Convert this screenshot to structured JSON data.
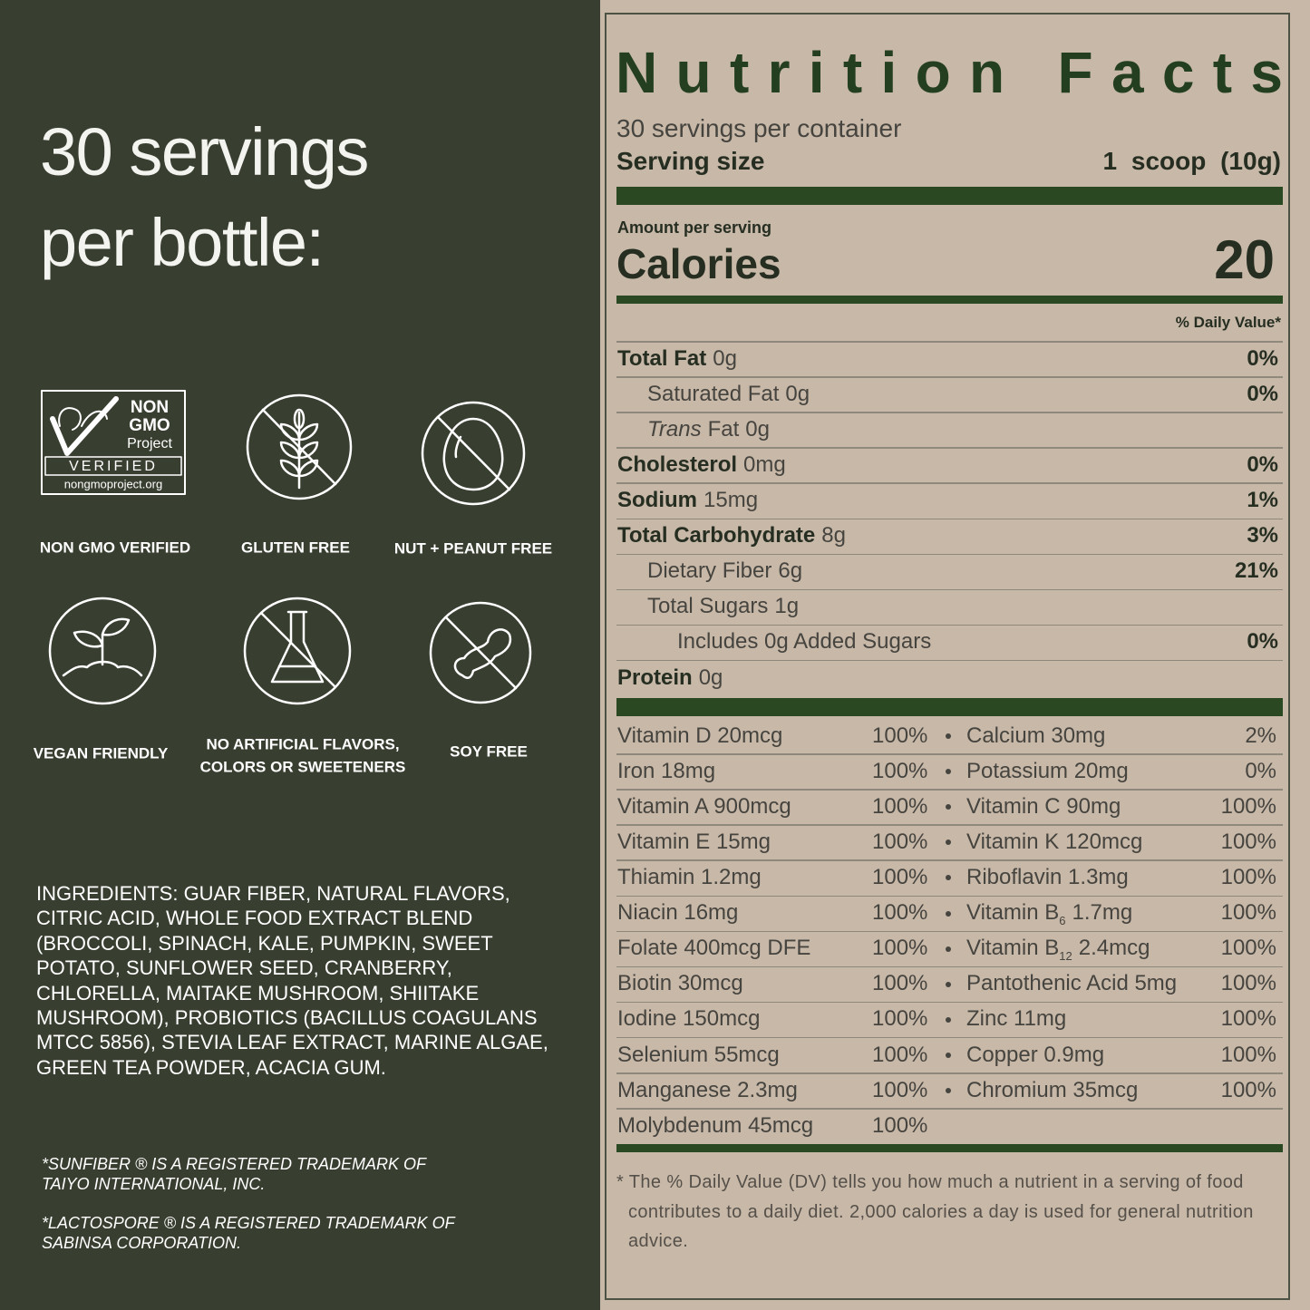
{
  "left": {
    "heading": [
      "30 servings",
      "per bottle:"
    ],
    "badges": [
      {
        "label": "NON GMO VERIFIED",
        "logo": {
          "lines": [
            "NON",
            "GMO",
            "Project"
          ],
          "verified": "VERIFIED",
          "url": "nongmoproject.org"
        }
      },
      {
        "label": "GLUTEN FREE"
      },
      {
        "label": "NUT + PEANUT FREE"
      },
      {
        "label": "VEGAN FRIENDLY"
      },
      {
        "label": [
          "NO ARTIFICIAL FLAVORS,",
          "COLORS OR SWEETENERS"
        ]
      },
      {
        "label": "SOY FREE"
      }
    ],
    "ingredients": "INGREDIENTS: GUAR FIBER, NATURAL FLAVORS, CITRIC ACID, WHOLE FOOD EXTRACT BLEND (BROCCOLI, SPINACH, KALE, PUMPKIN, SWEET POTATO, SUNFLOWER SEED, CRANBERRY, CHLORELLA, MAITAKE MUSHROOM, SHIITAKE MUSHROOM), PROBIOTICS (BACILLUS COAGULANS MTCC 5856), STEVIA LEAF EXTRACT, MARINE ALGAE, GREEN TEA POWDER, ACACIA GUM.",
    "trademarks": [
      "*SUNFIBER ® IS A REGISTERED TRADEMARK OF TAIYO INTERNATIONAL, INC.",
      "*LACTOSPORE ® IS A REGISTERED TRADEMARK OF SABINSA CORPORATION."
    ]
  },
  "nutrition_facts": {
    "title": "Nutrition Facts",
    "servings": "30 servings per container",
    "serving_size_label": "Serving size",
    "serving_size": "1 scoop (10g)",
    "amount_per_serving": "Amount per serving",
    "calories_label": "Calories",
    "calories": "20",
    "daily_value_header": "% Daily Value*",
    "nutrients": [
      {
        "name": "Total Fat",
        "amount": "0g",
        "dv": "0%",
        "sub": [
          {
            "name": "Saturated Fat",
            "amount": "0g",
            "dv": "0%"
          },
          {
            "name_italic": "Trans",
            "name": "Fat",
            "amount": "0g"
          }
        ]
      },
      {
        "name": "Cholesterol",
        "amount": "0mg",
        "dv": "0%"
      },
      {
        "name": "Sodium",
        "amount": "15mg",
        "dv": "1%"
      },
      {
        "name": "Total Carbohydrate",
        "amount": "8g",
        "dv": "3%",
        "sub": [
          {
            "name": "Dietary Fiber",
            "amount": "6g",
            "dv": "21%"
          },
          {
            "name": "Total Sugars",
            "amount": "1g",
            "sub": [
              {
                "name": "Includes 0g Added Sugars",
                "dv": "0%"
              }
            ]
          }
        ]
      },
      {
        "name": "Protein",
        "amount": "0g"
      }
    ],
    "vitamins": [
      [
        {
          "name": "Vitamin D 20mcg",
          "dv": "100%"
        },
        {
          "name": "Calcium 30mg",
          "dv": "2%"
        }
      ],
      [
        {
          "name": "Iron 18mg",
          "dv": "100%"
        },
        {
          "name": "Potassium 20mg",
          "dv": "0%"
        }
      ],
      [
        {
          "name": "Vitamin A 900mcg",
          "dv": "100%"
        },
        {
          "name": "Vitamin C 90mg",
          "dv": "100%"
        }
      ],
      [
        {
          "name": "Vitamin E 15mg",
          "dv": "100%"
        },
        {
          "name": "Vitamin K 120mcg",
          "dv": "100%"
        }
      ],
      [
        {
          "name": "Thiamin 1.2mg",
          "dv": "100%"
        },
        {
          "name": "Riboflavin 1.3mg",
          "dv": "100%"
        }
      ],
      [
        {
          "name": "Niacin 16mg",
          "dv": "100%"
        },
        {
          "name": "Vitamin B",
          "sub": "6",
          "name_after": "1.7mg",
          "dv": "100%"
        }
      ],
      [
        {
          "name": "Folate 400mcg DFE",
          "dv": "100%"
        },
        {
          "name": "Vitamin B",
          "sub": "12",
          "name_after": "2.4mcg",
          "dv": "100%"
        }
      ],
      [
        {
          "name": "Biotin 30mcg",
          "dv": "100%"
        },
        {
          "name": "Pantothenic Acid 5mg",
          "dv": "100%"
        }
      ],
      [
        {
          "name": "Iodine 150mcg",
          "dv": "100%"
        },
        {
          "name": "Zinc 11mg",
          "dv": "100%"
        }
      ],
      [
        {
          "name": "Selenium 55mcg",
          "dv": "100%"
        },
        {
          "name": "Copper 0.9mg",
          "dv": "100%"
        }
      ],
      [
        {
          "name": "Manganese 2.3mg",
          "dv": "100%"
        },
        {
          "name": "Chromium 35mcg",
          "dv": "100%"
        }
      ],
      [
        {
          "name": "Molybdenum 45mcg",
          "dv": "100%"
        }
      ]
    ],
    "footnote": "* The % Daily Value (DV) tells you how much a nutrient in a serving of food contributes to a daily diet. 2,000 calories a day is used for general nutrition advice."
  }
}
